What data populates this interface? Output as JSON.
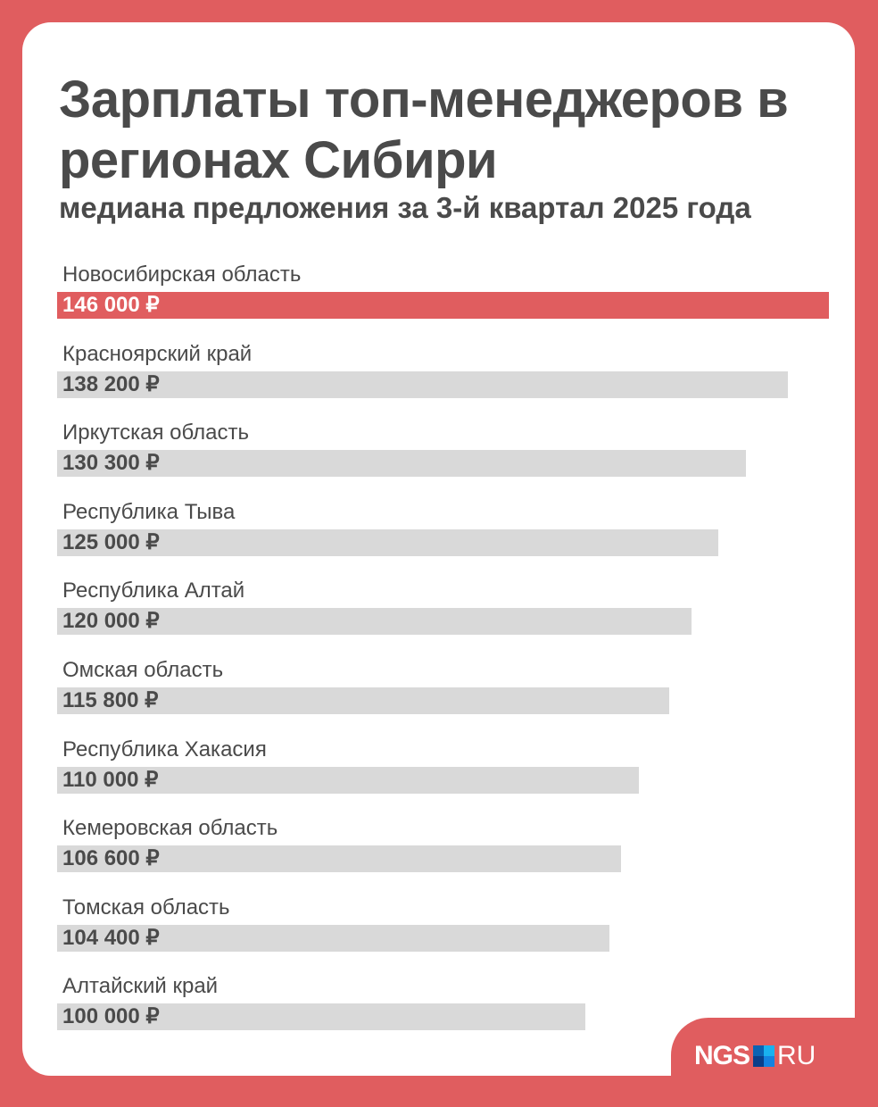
{
  "chart_data": {
    "type": "bar",
    "orientation": "horizontal",
    "title": "Зарплаты топ-менеджеров в регионах Сибири",
    "subtitle": "медиана предложения за 3-й квартал 2025 года",
    "categories": [
      "Новосибирская область",
      "Красноярский край",
      "Иркутская область",
      "Республика Тыва",
      "Республика Алтай",
      "Омская область",
      "Республика Хакасия",
      "Кемеровская область",
      "Томская область",
      "Алтайский край"
    ],
    "values": [
      146000,
      138200,
      130300,
      125000,
      120000,
      115800,
      110000,
      106600,
      104400,
      100000
    ],
    "value_labels": [
      "146 000 ₽",
      "138 200 ₽",
      "130 300 ₽",
      "125 000 ₽",
      "120 000 ₽",
      "115 800 ₽",
      "110 000 ₽",
      "106 600 ₽",
      "104 400 ₽",
      "100 000 ₽"
    ],
    "highlight_index": 0,
    "colors": {
      "highlight": "#e05d5f",
      "default": "#d9d9d9",
      "background": "#e05d5f",
      "text": "#4a4a4a"
    }
  },
  "logo": {
    "text_bold": "NGS",
    "text_light": "RU",
    "colors": [
      "#0a63b3",
      "#19b1f0",
      "#0a3f8a",
      "#1482e0"
    ]
  }
}
